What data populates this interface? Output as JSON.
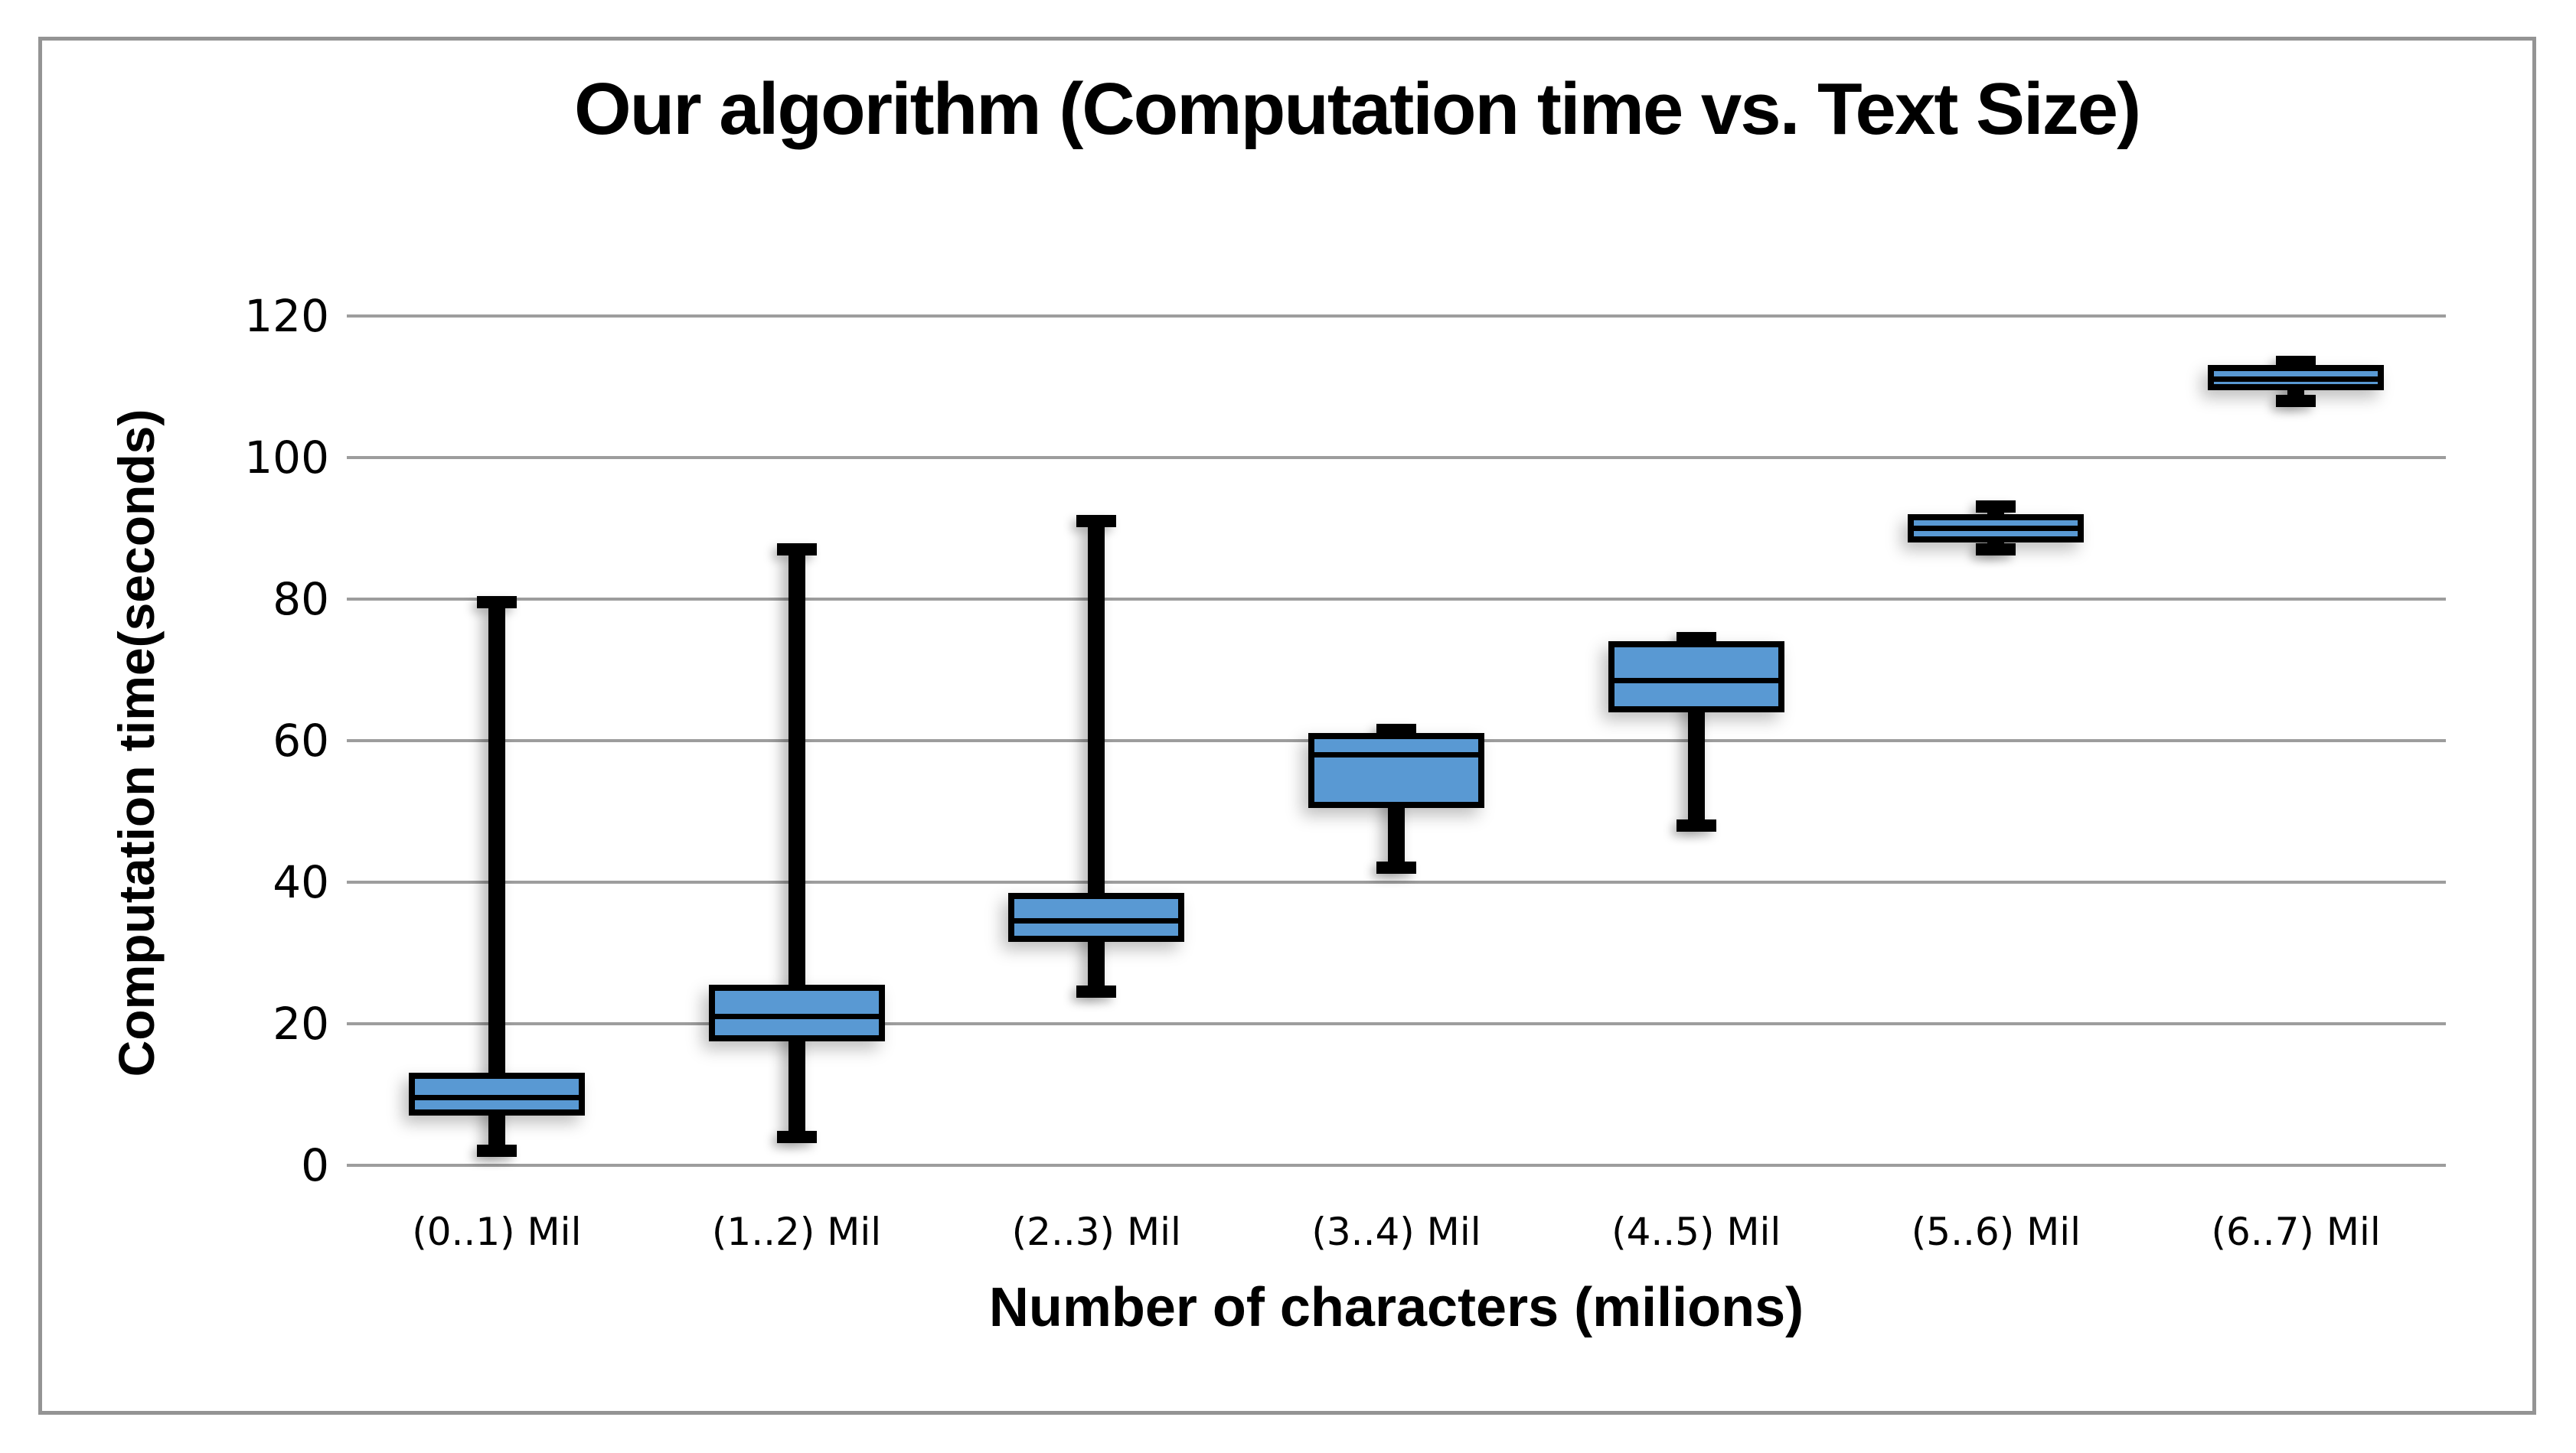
{
  "title": "Our algorithm (Computation time vs. Text Size)",
  "colors": {
    "box_fill": "#5999d3",
    "box_border": "#000000",
    "whisker": "#000000",
    "gridline": "#9d9d9d",
    "frame_border": "#949494",
    "background": "#ffffff",
    "text": "#000000"
  },
  "chart_data": {
    "type": "boxplot",
    "title": "Our algorithm (Computation time vs. Text Size)",
    "xlabel": "Number of characters (milions)",
    "ylabel": "Computation time(seconds)",
    "categories": [
      "(0..1) Mil",
      "(1..2) Mil",
      "(2..3) Mil",
      "(3..4) Mil",
      "(4..5) Mil",
      "(5..6) Mil",
      "(6..7) Mil"
    ],
    "y_axis": {
      "min": 0,
      "max": 120,
      "tick_step": 20,
      "ticks": [
        120,
        100,
        80,
        60,
        40,
        20,
        0
      ],
      "grid": true
    },
    "legend": "none",
    "series": [
      {
        "name": "Computation time (seconds)",
        "boxes": [
          {
            "category": "(0..1) Mil",
            "min": 2,
            "q1": 7,
            "median": 9.5,
            "q3": 13,
            "max": 79.5
          },
          {
            "category": "(1..2) Mil",
            "min": 4,
            "q1": 17.5,
            "median": 21,
            "q3": 25.5,
            "max": 87
          },
          {
            "category": "(2..3) Mil",
            "min": 24.5,
            "q1": 31.5,
            "median": 34.5,
            "q3": 38.5,
            "max": 91
          },
          {
            "category": "(3..4) Mil",
            "min": 42,
            "q1": 50.5,
            "median": 58,
            "q3": 61,
            "max": 61.5
          },
          {
            "category": "(4..5) Mil",
            "min": 48,
            "q1": 64,
            "median": 68.5,
            "q3": 74,
            "max": 74.5
          },
          {
            "category": "(5..6) Mil",
            "min": 87,
            "q1": 88,
            "median": 90,
            "q3": 92,
            "max": 93
          },
          {
            "category": "(6..7) Mil",
            "min": 108,
            "q1": 109.5,
            "median": 111,
            "q3": 113,
            "max": 113.5
          }
        ]
      }
    ]
  }
}
